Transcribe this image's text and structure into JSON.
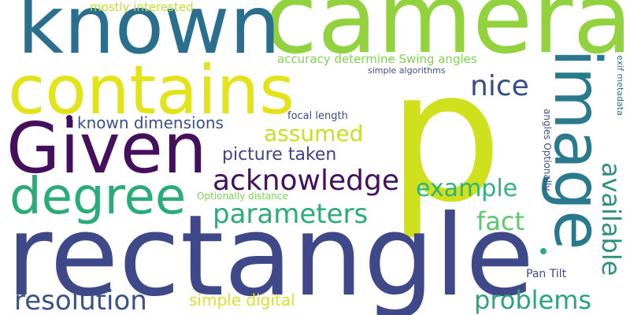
{
  "words": {
    "p": "p",
    "rectangle": "rectangle",
    "camera": "camera",
    "contains": "contains",
    "given": "Given",
    "known": "known",
    "image": "image",
    "degree": "degree",
    "acknowledge": "acknowledge",
    "parameters": "parameters",
    "available": "available",
    "resolution": "resolution",
    "problems": "problems",
    "nice": "nice",
    "example": "example",
    "fact": "fact",
    "assumed": "assumed",
    "picture_taken": "picture taken",
    "known_dimensions": "known dimensions",
    "simple_digital": "simple digital",
    "mostly_interested": "mostly interested",
    "accuracy_determine": "accuracy determine Swing angles",
    "simple_algorithms": "simple algorithms",
    "exif_metadata": "exif metadata",
    "focal_length": "focal length",
    "optionally_distance": "Optionally distance",
    "angles_optionally": "angles Optionally",
    "pan_tilt": "Pan Tilt"
  },
  "colors": {
    "background": "#ffffff",
    "palette": [
      "#440f5c",
      "#3f4889",
      "#2a6f8e",
      "#2aac78",
      "#93d23f",
      "#cfe11c"
    ]
  }
}
